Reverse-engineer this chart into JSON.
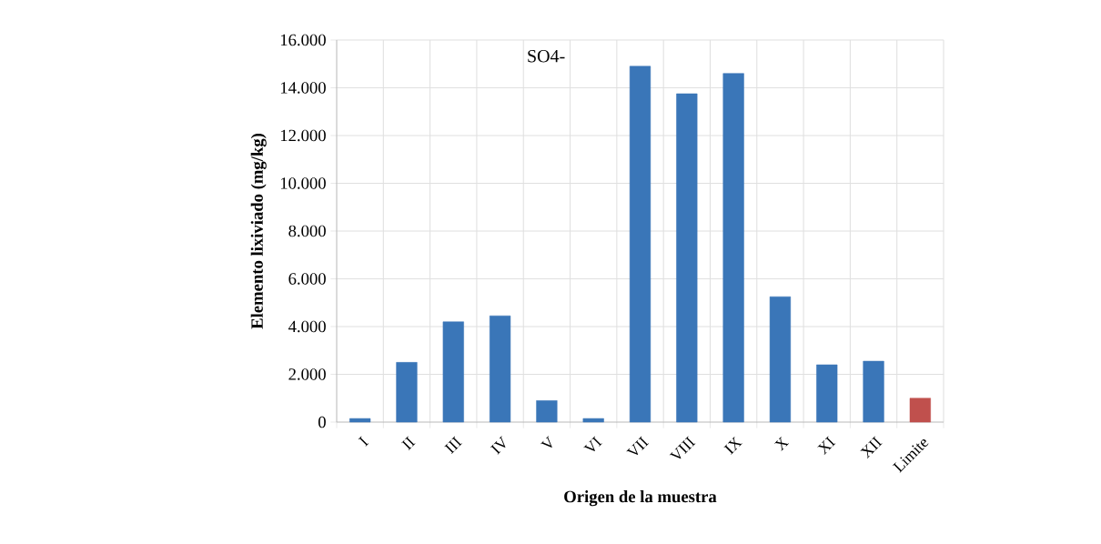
{
  "chart_data": {
    "type": "bar",
    "title": "SO4-",
    "xlabel": "Origen de la muestra",
    "ylabel": "Elemento lixiviado  (mg/kg)",
    "categories": [
      "I",
      "II",
      "III",
      "IV",
      "V",
      "VI",
      "VII",
      "VIII",
      "IX",
      "X",
      "XI",
      "XII",
      "Limite"
    ],
    "values": [
      150,
      2500,
      4200,
      4450,
      900,
      150,
      14900,
      13750,
      14600,
      5250,
      2400,
      2550,
      1000
    ],
    "colors": [
      "#3a76b8",
      "#3a76b8",
      "#3a76b8",
      "#3a76b8",
      "#3a76b8",
      "#3a76b8",
      "#3a76b8",
      "#3a76b8",
      "#3a76b8",
      "#3a76b8",
      "#3a76b8",
      "#3a76b8",
      "#c0504d"
    ],
    "ylim": [
      0,
      16000
    ],
    "yticks": [
      0,
      {
        "value": 2000,
        "label": "2.000"
      },
      {
        "value": 4000,
        "label": "4.000"
      },
      {
        "value": 6000,
        "label": "6.000"
      },
      {
        "value": 8000,
        "label": "8.000"
      },
      {
        "value": 10000,
        "label": "10.000"
      },
      {
        "value": 12000,
        "label": "12.000"
      },
      {
        "value": 14000,
        "label": "14.000"
      },
      {
        "value": 16000,
        "label": "16.000"
      }
    ],
    "grid": true
  }
}
